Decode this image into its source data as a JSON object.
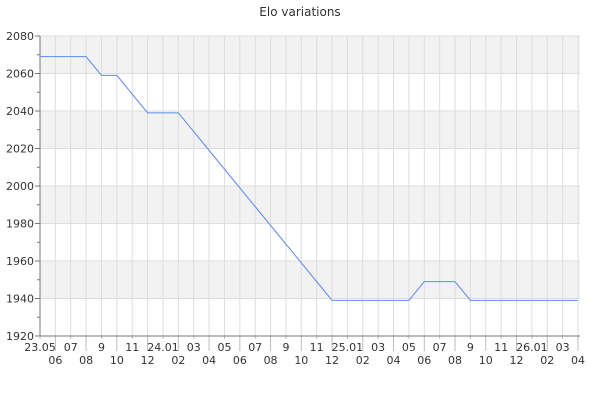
{
  "chart_data": {
    "type": "line",
    "title": "Elo variations",
    "xlabel": "",
    "ylabel": "",
    "ylim": [
      1920,
      2080
    ],
    "yticks": [
      1920,
      1940,
      1960,
      1980,
      2000,
      2020,
      2040,
      2060,
      2080
    ],
    "grid": true,
    "x": [
      "23.05",
      "06",
      "07",
      "08",
      "9",
      "10",
      "11",
      "12",
      "24.01",
      "02",
      "03",
      "04",
      "05",
      "06",
      "07",
      "08",
      "9",
      "10",
      "11",
      "12",
      "25.01",
      "02",
      "03",
      "04",
      "05",
      "06",
      "07",
      "08",
      "9",
      "10",
      "11",
      "12",
      "26.01",
      "02",
      "03",
      "04"
    ],
    "values": [
      2069,
      2069,
      2069,
      2069,
      2059,
      2059,
      2049,
      2039,
      2039,
      2039,
      2029,
      2019,
      2009,
      1999,
      1989,
      1979,
      1969,
      1959,
      1949,
      1939,
      1939,
      1939,
      1939,
      1939,
      1939,
      1949,
      1949,
      1949,
      1939,
      1939,
      1939,
      1939,
      1939,
      1939,
      1939,
      1939
    ],
    "colors": {
      "line": "#5b8def",
      "band": "#f2f2f2",
      "grid": "#dddddd"
    }
  }
}
